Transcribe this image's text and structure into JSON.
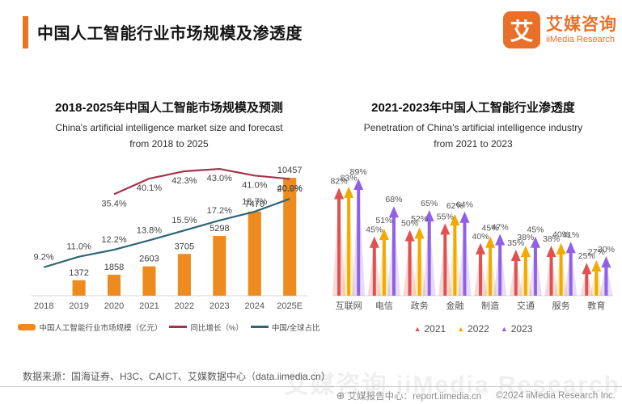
{
  "header": {
    "title": "中国人工智能行业市场规模及渗透度",
    "logo_char": "艾",
    "brand_cn": "艾媒咨询",
    "brand_en": "iiMedia Research",
    "brand_color": "#E8702A"
  },
  "chart_data": [
    {
      "id": "market-size",
      "type": "bar",
      "title": "2018-2025年中国人工智能市场规模及预测",
      "subtitle1": "China's artificial intelligence market size and forecast",
      "subtitle2": "from 2018 to 2025",
      "categories": [
        "2018",
        "2019",
        "2020",
        "2021",
        "2022",
        "2023",
        "2024",
        "2025E"
      ],
      "series": [
        {
          "name": "中国人工智能行业市场规模（亿元）",
          "type": "bar",
          "color": "#ED8B1F",
          "values": [
            null,
            1372,
            1858,
            2603,
            3705,
            5298,
            7470,
            10457
          ]
        },
        {
          "name": "同比增长（%）",
          "type": "line",
          "color": "#A2334A",
          "unit": "%",
          "values": [
            null,
            null,
            35.4,
            40.1,
            42.3,
            43.0,
            41.0,
            40.0
          ]
        },
        {
          "name": "中国/全球占比",
          "type": "line",
          "color": "#2E6577",
          "unit": "%",
          "values": [
            9.2,
            11.0,
            12.2,
            13.8,
            15.5,
            17.2,
            18.7,
            20.9
          ]
        }
      ],
      "bar_ylim": [
        0,
        11000
      ],
      "grid": false,
      "legend_position": "bottom"
    },
    {
      "id": "penetration",
      "type": "bar",
      "title": "2021-2023年中国人工智能行业渗透度",
      "subtitle1": "Penetration of China's artificial intelligence industry",
      "subtitle2": "from 2021 to 2023",
      "categories": [
        "互联网",
        "电信",
        "政务",
        "金融",
        "制造",
        "交通",
        "服务",
        "教育"
      ],
      "series": [
        {
          "name": "2021",
          "color": "#E05252",
          "unit": "%",
          "values": [
            82,
            45,
            50,
            55,
            40,
            35,
            38,
            25
          ]
        },
        {
          "name": "2022",
          "color": "#F2A900",
          "unit": "%",
          "values": [
            83,
            51,
            52,
            62,
            45,
            38,
            40,
            27
          ]
        },
        {
          "name": "2023",
          "color": "#9061E8",
          "unit": "%",
          "values": [
            89,
            68,
            65,
            64,
            47,
            45,
            41,
            30
          ]
        }
      ],
      "marker_glyph": "▲",
      "ylim": [
        0,
        100
      ],
      "grid": false,
      "legend_position": "bottom"
    }
  ],
  "source_note": "数据来源：国海证券、H3C、CAICT、艾媒数据中心（data.iimedia.cn）",
  "footer": {
    "report_center": "艾媒报告中心：report.iimedia.cn",
    "copyright": "©2024 iiMedia Research Inc."
  },
  "watermark": "艾媒咨询 iiMedia Research"
}
